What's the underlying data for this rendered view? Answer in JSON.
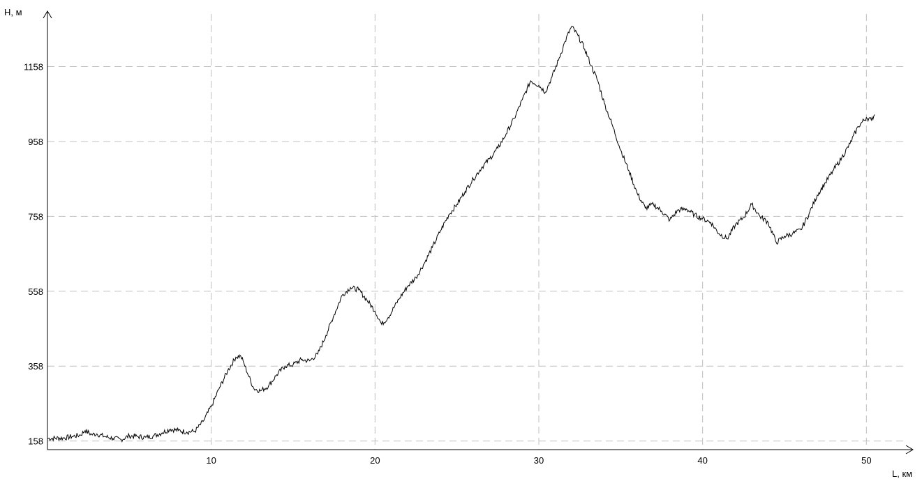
{
  "chart_data": {
    "type": "line",
    "title": "",
    "xlabel": "L, км",
    "ylabel": "H, м",
    "xlim": [
      0,
      52.5
    ],
    "ylim": [
      135,
      1280
    ],
    "x_ticks": [
      10,
      20,
      30,
      40,
      50
    ],
    "y_ticks": [
      158,
      358,
      558,
      758,
      958,
      1158
    ],
    "grid": true,
    "colors": {
      "line": "#000000",
      "grid": "#c0c0c0",
      "axis": "#000000"
    },
    "series": [
      {
        "values": [
          [
            0.0,
            165
          ],
          [
            1.0,
            166
          ],
          [
            1.5,
            170
          ],
          [
            2.0,
            174
          ],
          [
            2.3,
            186
          ],
          [
            2.7,
            175
          ],
          [
            3.0,
            177
          ],
          [
            3.5,
            170
          ],
          [
            4.0,
            165
          ],
          [
            4.5,
            162
          ],
          [
            5.0,
            172
          ],
          [
            5.5,
            170
          ],
          [
            6.0,
            168
          ],
          [
            6.5,
            172
          ],
          [
            7.0,
            180
          ],
          [
            7.5,
            190
          ],
          [
            8.0,
            186
          ],
          [
            8.5,
            182
          ],
          [
            9.0,
            184
          ],
          [
            9.5,
            210
          ],
          [
            10.0,
            250
          ],
          [
            10.5,
            300
          ],
          [
            11.0,
            345
          ],
          [
            11.5,
            382
          ],
          [
            11.8,
            385
          ],
          [
            12.0,
            365
          ],
          [
            12.3,
            330
          ],
          [
            12.6,
            298
          ],
          [
            13.0,
            292
          ],
          [
            13.5,
            305
          ],
          [
            14.0,
            335
          ],
          [
            14.5,
            358
          ],
          [
            15.0,
            362
          ],
          [
            15.5,
            375
          ],
          [
            16.0,
            372
          ],
          [
            16.5,
            390
          ],
          [
            17.0,
            440
          ],
          [
            17.5,
            495
          ],
          [
            18.0,
            548
          ],
          [
            18.5,
            568
          ],
          [
            19.0,
            562
          ],
          [
            19.5,
            535
          ],
          [
            20.0,
            505
          ],
          [
            20.4,
            470
          ],
          [
            20.8,
            488
          ],
          [
            21.5,
            540
          ],
          [
            22.0,
            572
          ],
          [
            22.5,
            595
          ],
          [
            23.0,
            632
          ],
          [
            23.5,
            675
          ],
          [
            24.0,
            720
          ],
          [
            24.5,
            762
          ],
          [
            25.0,
            790
          ],
          [
            25.5,
            825
          ],
          [
            26.0,
            858
          ],
          [
            26.5,
            888
          ],
          [
            27.0,
            912
          ],
          [
            27.5,
            940
          ],
          [
            28.0,
            978
          ],
          [
            28.5,
            1020
          ],
          [
            29.0,
            1070
          ],
          [
            29.5,
            1120
          ],
          [
            30.0,
            1108
          ],
          [
            30.4,
            1090
          ],
          [
            30.8,
            1130
          ],
          [
            31.2,
            1175
          ],
          [
            31.6,
            1225
          ],
          [
            32.0,
            1265
          ],
          [
            32.4,
            1240
          ],
          [
            32.8,
            1205
          ],
          [
            33.2,
            1160
          ],
          [
            33.6,
            1120
          ],
          [
            34.0,
            1060
          ],
          [
            34.5,
            1000
          ],
          [
            35.0,
            935
          ],
          [
            35.5,
            880
          ],
          [
            36.0,
            820
          ],
          [
            36.5,
            780
          ],
          [
            37.0,
            790
          ],
          [
            37.5,
            772
          ],
          [
            38.0,
            748
          ],
          [
            38.5,
            775
          ],
          [
            39.0,
            778
          ],
          [
            39.5,
            762
          ],
          [
            40.0,
            752
          ],
          [
            40.5,
            742
          ],
          [
            41.0,
            712
          ],
          [
            41.5,
            698
          ],
          [
            42.0,
            735
          ],
          [
            42.5,
            755
          ],
          [
            43.0,
            790
          ],
          [
            43.5,
            758
          ],
          [
            44.0,
            742
          ],
          [
            44.5,
            688
          ],
          [
            45.0,
            705
          ],
          [
            45.5,
            712
          ],
          [
            46.0,
            722
          ],
          [
            46.5,
            765
          ],
          [
            47.0,
            815
          ],
          [
            47.5,
            848
          ],
          [
            48.0,
            882
          ],
          [
            48.5,
            915
          ],
          [
            49.0,
            952
          ],
          [
            49.5,
            998
          ],
          [
            50.0,
            1022
          ],
          [
            50.3,
            1015
          ],
          [
            50.5,
            1030
          ]
        ]
      }
    ]
  }
}
